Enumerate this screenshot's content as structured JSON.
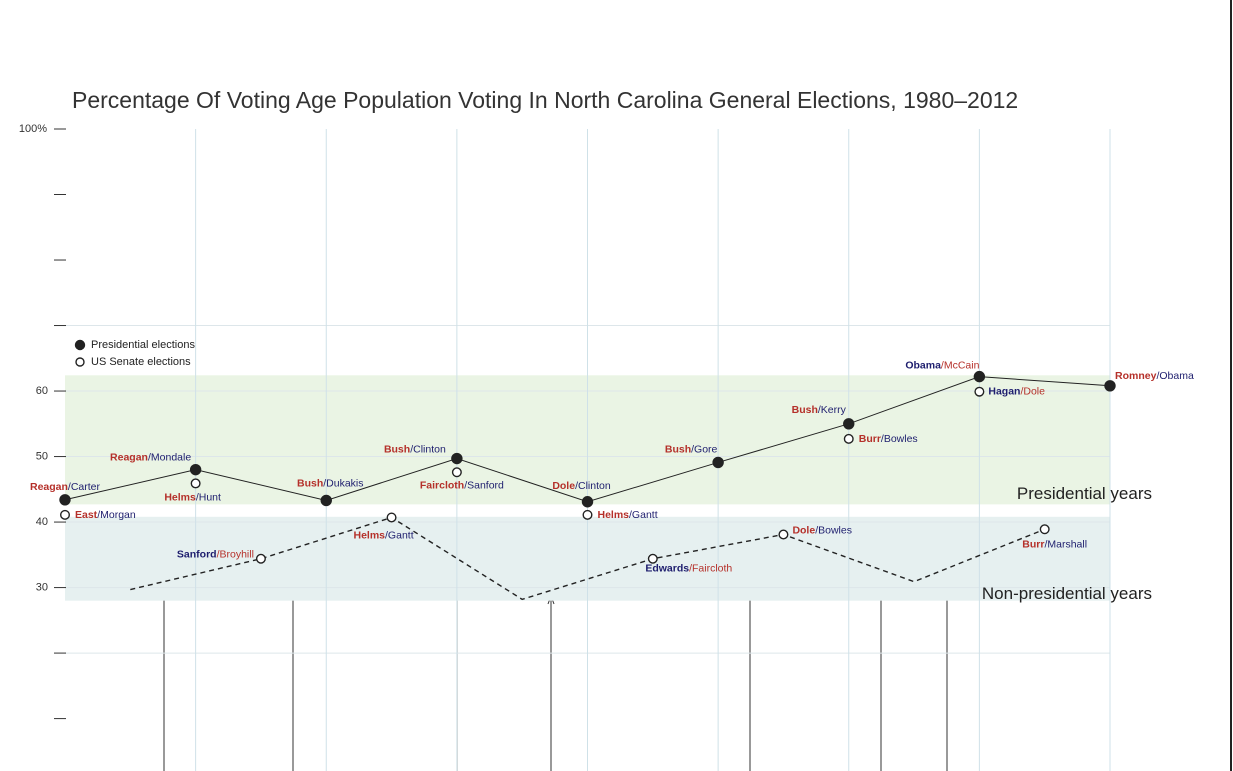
{
  "chart_data": {
    "type": "line",
    "title": "Percentage Of Voting Age Population Voting In North Carolina General Elections, 1980–2012",
    "xlim": [
      1980,
      2012
    ],
    "xgrid": [
      1984,
      1988,
      1992,
      1996,
      2000,
      2004,
      2008,
      2012
    ],
    "ylim": [
      2,
      100
    ],
    "yticks": [
      {
        "value": 100,
        "label": "100%"
      },
      60,
      50,
      40,
      30
    ],
    "yticks_unlabeled": [
      90,
      80,
      70,
      20,
      10
    ],
    "ygrid": [
      70,
      60,
      50,
      40,
      30,
      20
    ],
    "grid": true,
    "party_colors": {
      "R": "#b5302a",
      "D": "#1e1e6e"
    },
    "bands": [
      {
        "label": "Presidential years",
        "from": 42.7,
        "to": 62.4,
        "color": "#eaf4e4"
      },
      {
        "label": "Non-presidential years",
        "from": 28.0,
        "to": 40.8,
        "color": "#e6f0f0"
      }
    ],
    "series": [
      {
        "name": "Presidential elections",
        "marker": "filled",
        "line": "solid",
        "color": "#222222",
        "x": [
          1980,
          1984,
          1988,
          1992,
          1996,
          2000,
          2004,
          2008,
          2012
        ],
        "values": [
          43.4,
          48.0,
          43.3,
          49.7,
          43.1,
          49.1,
          55.0,
          62.2,
          60.8
        ],
        "labels": [
          [
            {
              "text": "Reagan",
              "party": "R"
            },
            {
              "text": "/Carter",
              "party": "D"
            }
          ],
          [
            {
              "text": "Reagan",
              "party": "R"
            },
            {
              "text": "/Mondale",
              "party": "D"
            }
          ],
          [
            {
              "text": "Bush",
              "party": "R"
            },
            {
              "text": "/Dukakis",
              "party": "D"
            }
          ],
          [
            {
              "text": "Bush",
              "party": "R"
            },
            {
              "text": "/Clinton",
              "party": "D"
            }
          ],
          [
            {
              "text": "Dole",
              "party": "R"
            },
            {
              "text": "/Clinton",
              "party": "D"
            }
          ],
          [
            {
              "text": "Bush",
              "party": "R"
            },
            {
              "text": "/Gore",
              "party": "D"
            }
          ],
          [
            {
              "text": "Bush",
              "party": "R"
            },
            {
              "text": "/Kerry",
              "party": "D"
            }
          ],
          [
            {
              "text": "Obama",
              "party": "D"
            },
            {
              "text": "/McCain",
              "party": "R"
            }
          ],
          [
            {
              "text": "Romney",
              "party": "R"
            },
            {
              "text": "/Obama",
              "party": "D"
            }
          ]
        ]
      },
      {
        "name": "US Senate elections",
        "marker": "open",
        "line": "none",
        "color": "#222222",
        "x": [
          1980,
          1984,
          1992,
          1996,
          2004,
          2008
        ],
        "values": [
          41.1,
          45.9,
          47.6,
          41.1,
          52.7,
          59.9
        ],
        "labels": [
          [
            {
              "text": "East",
              "party": "R"
            },
            {
              "text": "/Morgan",
              "party": "D"
            }
          ],
          [
            {
              "text": "Helms",
              "party": "R"
            },
            {
              "text": "/Hunt",
              "party": "D"
            }
          ],
          [
            {
              "text": "Faircloth",
              "party": "R"
            },
            {
              "text": "/Sanford",
              "party": "D"
            }
          ],
          [
            {
              "text": "Helms",
              "party": "R"
            },
            {
              "text": "/Gantt",
              "party": "D"
            }
          ],
          [
            {
              "text": "Burr",
              "party": "R"
            },
            {
              "text": "/Bowles",
              "party": "D"
            }
          ],
          [
            {
              "text": "Hagan",
              "party": "D"
            },
            {
              "text": "/Dole",
              "party": "R"
            }
          ]
        ]
      },
      {
        "marker": "open",
        "line": "dashed",
        "color": "#222222",
        "x": [
          1982,
          1986,
          1990,
          1994,
          1998,
          2002,
          2006,
          2010
        ],
        "values": [
          29.7,
          34.4,
          40.7,
          28.2,
          34.4,
          38.1,
          30.9,
          38.9
        ],
        "marker_shown": [
          false,
          true,
          true,
          false,
          true,
          true,
          false,
          true
        ],
        "labels": [
          null,
          [
            {
              "text": "Sanford",
              "party": "D"
            },
            {
              "text": "/Broyhill",
              "party": "R"
            }
          ],
          [
            {
              "text": "Helms",
              "party": "R"
            },
            {
              "text": "/Gantt",
              "party": "D"
            }
          ],
          null,
          [
            {
              "text": "Edwards",
              "party": "D"
            },
            {
              "text": "/Faircloth",
              "party": "R"
            }
          ],
          [
            {
              "text": "Dole",
              "party": "R"
            },
            {
              "text": "/Bowles",
              "party": "D"
            }
          ],
          null,
          [
            {
              "text": "Burr",
              "party": "R"
            },
            {
              "text": "/Marshall",
              "party": "D"
            }
          ]
        ]
      }
    ]
  }
}
